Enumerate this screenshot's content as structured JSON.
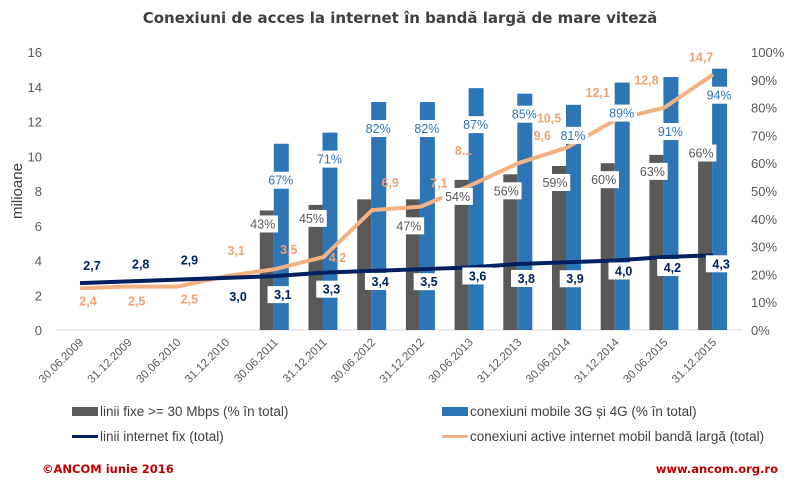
{
  "chart_data": {
    "type": "bar+line",
    "title": "Conexiuni de acces la internet în bandă largă de mare viteză",
    "ylabel": "milioane",
    "ylim": [
      0,
      16
    ],
    "yticks": [
      "0",
      "2",
      "4",
      "6",
      "8",
      "10",
      "12",
      "14",
      "16"
    ],
    "y2lim": [
      0,
      100
    ],
    "y2ticks": [
      "0%",
      "10%",
      "20%",
      "30%",
      "40%",
      "50%",
      "60%",
      "70%",
      "80%",
      "90%",
      "100%"
    ],
    "grid": false,
    "legend_position": "bottom",
    "categories": [
      "30.06.2009",
      "31.12.2009",
      "30.06.2010",
      "31.12.2010",
      "30.06.2011",
      "31.12.2011",
      "30.06.2012",
      "31.12.2012",
      "30.06.2013",
      "31.12.2013",
      "30.06.2014",
      "31.12.2014",
      "30.06.2015",
      "31.12.2015"
    ],
    "series": [
      {
        "name": "linii fixe >= 30 Mbps (% în total)",
        "type": "bar",
        "axis": "right",
        "color": "#595959",
        "values": [
          null,
          null,
          null,
          null,
          43,
          45,
          47,
          47,
          54,
          56,
          59,
          60,
          63,
          66
        ],
        "labels": [
          null,
          null,
          null,
          null,
          "43%",
          "45%",
          null,
          "47%",
          "54%",
          "56%",
          "59%",
          "60%",
          "63%",
          "66%"
        ]
      },
      {
        "name": "conexiuni mobile 3G și 4G (% în total)",
        "type": "bar",
        "axis": "right",
        "color": "#2e75b6",
        "values": [
          null,
          null,
          null,
          null,
          67,
          71,
          82,
          82,
          87,
          85,
          81,
          89,
          91,
          94
        ],
        "labels": [
          null,
          null,
          null,
          null,
          "67%",
          "71%",
          "82%",
          "82%",
          "87%",
          "85%",
          "81%",
          "89%",
          "91%",
          "94%"
        ]
      },
      {
        "name": "linii internet fix (total)",
        "type": "line",
        "axis": "left",
        "color": "#002060",
        "values": [
          2.7,
          2.8,
          2.9,
          3.0,
          3.1,
          3.3,
          3.4,
          3.5,
          3.6,
          3.8,
          3.9,
          4.0,
          4.2,
          4.3
        ],
        "labels": [
          "2,7",
          "2,8",
          "2,9",
          "3,0",
          "3,1",
          "3,3",
          "3,4",
          "3,5",
          "3,6",
          "3,8",
          "3,9",
          "4,0",
          "4,2",
          "4,3"
        ]
      },
      {
        "name": "conexiuni active internet mobil bandă largă (total)",
        "type": "line",
        "axis": "left",
        "color": "#f4b183",
        "values": [
          2.4,
          2.5,
          2.5,
          3.1,
          3.5,
          4.2,
          6.9,
          7.1,
          8.3,
          9.6,
          10.5,
          12.1,
          12.8,
          14.7
        ],
        "labels": [
          "2,4",
          "2,5",
          "2,5",
          "3,1",
          "3,5",
          "4,2",
          "6,9",
          "7,1",
          "8...",
          "9,6",
          "10,5",
          "12,1",
          "12,8",
          "14,7"
        ]
      }
    ]
  },
  "footer": {
    "left": "©ANCOM iunie 2016",
    "right": "www.ancom.org.ro"
  }
}
